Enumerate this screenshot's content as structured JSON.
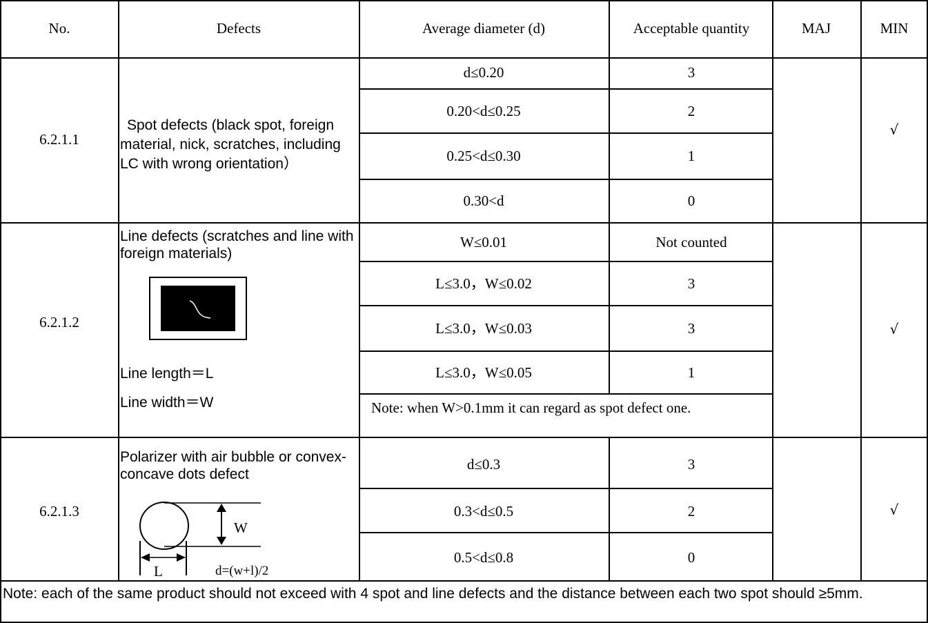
{
  "headers": {
    "no": "No.",
    "defects": "Defects",
    "avg_diameter": "Average diameter (d)",
    "acceptable_qty": "Acceptable quantity",
    "maj": "MAJ",
    "min": "MIN"
  },
  "rows": [
    {
      "no": "6.2.1.1",
      "defect": "Spot defects (black spot, foreign material, nick, scratches, including LC with wrong orientation）",
      "criteria": [
        {
          "d": "d≤0.20",
          "qty": "3"
        },
        {
          "d": "0.20<d≤0.25",
          "qty": "2"
        },
        {
          "d": "0.25<d≤0.30",
          "qty": "1"
        },
        {
          "d": "0.30<d",
          "qty": "0"
        }
      ],
      "maj": "",
      "min": "√"
    },
    {
      "no": "6.2.1.2",
      "defect": "Line defects (scratches and line with foreign materials)",
      "line_length": "Line length＝L",
      "line_width": "Line width＝W",
      "criteria": [
        {
          "d": "W≤0.01",
          "qty": "Not counted"
        },
        {
          "d": "L≤3.0，W≤0.02",
          "qty": "3"
        },
        {
          "d": "L≤3.0，W≤0.03",
          "qty": "3"
        },
        {
          "d": "L≤3.0，W≤0.05",
          "qty": "1"
        }
      ],
      "note": "Note: when W>0.1mm it can regard as spot defect one.",
      "maj": "",
      "min": "√"
    },
    {
      "no": "6.2.1.3",
      "defect": "Polarizer with air bubble or convex-concave dots defect",
      "diagram": {
        "w_label": "W",
        "l_label": "L",
        "formula": "d=(w+l)/2"
      },
      "criteria": [
        {
          "d": "d≤0.3",
          "qty": "3"
        },
        {
          "d": "0.3<d≤0.5",
          "qty": "2"
        },
        {
          "d": "0.5<d≤0.8",
          "qty": "0"
        }
      ],
      "maj": "",
      "min": "√"
    }
  ],
  "footer_note": "Note: each of the same product should not exceed with 4 spot and line defects and the distance between each two spot should ≥5mm."
}
